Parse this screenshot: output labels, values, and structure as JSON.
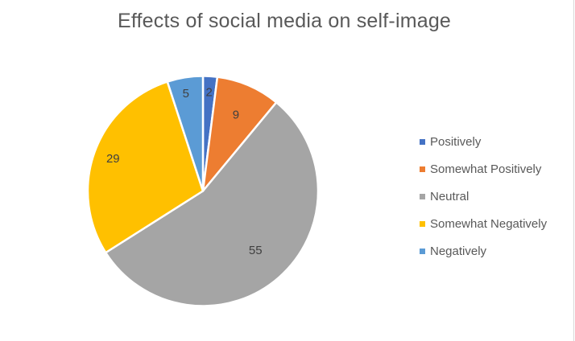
{
  "chart_data": {
    "type": "pie",
    "title": "Effects of social media on self-image",
    "categories": [
      "Positively",
      "Somewhat Positively",
      "Neutral",
      "Somewhat Negatively",
      "Negatively"
    ],
    "values": [
      2,
      9,
      55,
      29,
      5
    ],
    "colors": [
      "#4472c4",
      "#ed7d31",
      "#a5a5a5",
      "#ffc000",
      "#5b9bd5"
    ],
    "data_labels": [
      "2",
      "9",
      "55",
      "29",
      "5"
    ],
    "start_angle_deg": 0,
    "direction": "clockwise",
    "legend_position": "right"
  }
}
